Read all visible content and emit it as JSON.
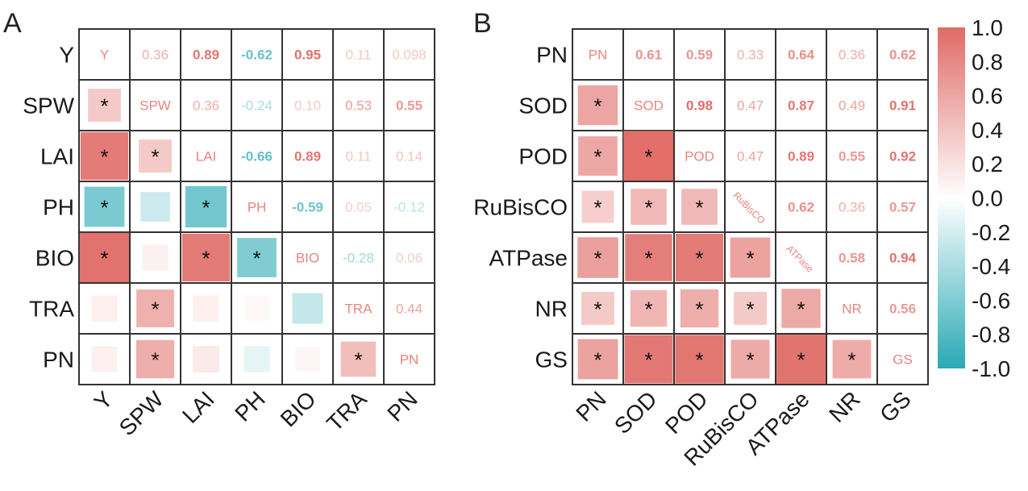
{
  "chart_data": [
    {
      "type": "heatmap",
      "panel_label": "A",
      "variables": [
        "Y",
        "SPW",
        "LAI",
        "PH",
        "BIO",
        "TRA",
        "PN"
      ],
      "diagonal_labels": [
        "Y",
        "SPW",
        "LAI",
        "PH",
        "BIO",
        "TRA",
        "PN"
      ],
      "upper_values": [
        [
          "",
          "0.36",
          "0.89",
          "-0.62",
          "0.95",
          "0.11",
          "0.098"
        ],
        [
          "",
          "",
          "0.36",
          "-0.24",
          "0.10",
          "0.53",
          "0.55"
        ],
        [
          "",
          "",
          "",
          "-0.66",
          "0.89",
          "0.11",
          "0.14"
        ],
        [
          "",
          "",
          "",
          "",
          "-0.59",
          "0.05",
          "-0.12"
        ],
        [
          "",
          "",
          "",
          "",
          "",
          "-0.28",
          "0.06"
        ],
        [
          "",
          "",
          "",
          "",
          "",
          "",
          "0.44"
        ],
        [
          "",
          "",
          "",
          "",
          "",
          "",
          ""
        ]
      ],
      "matrix": [
        [
          1,
          0.36,
          0.89,
          -0.62,
          0.95,
          0.11,
          0.098
        ],
        [
          0.36,
          1,
          0.36,
          -0.24,
          0.1,
          0.53,
          0.55
        ],
        [
          0.89,
          0.36,
          1,
          -0.66,
          0.89,
          0.11,
          0.14
        ],
        [
          -0.62,
          -0.24,
          -0.66,
          1,
          -0.59,
          0.05,
          -0.12
        ],
        [
          0.95,
          0.1,
          0.89,
          -0.59,
          1,
          -0.28,
          0.06
        ],
        [
          0.11,
          0.53,
          0.11,
          0.05,
          -0.28,
          1,
          0.44
        ],
        [
          0.098,
          0.55,
          0.14,
          -0.12,
          0.06,
          0.44,
          1
        ]
      ],
      "significant": [
        [
          1,
          0
        ],
        [
          2,
          0
        ],
        [
          2,
          1
        ],
        [
          3,
          0
        ],
        [
          3,
          2
        ],
        [
          4,
          0
        ],
        [
          4,
          2
        ],
        [
          4,
          3
        ],
        [
          5,
          1
        ],
        [
          6,
          1
        ],
        [
          6,
          5
        ]
      ]
    },
    {
      "type": "heatmap",
      "panel_label": "B",
      "variables": [
        "PN",
        "SOD",
        "POD",
        "RuBisCO",
        "ATPase",
        "NR",
        "GS"
      ],
      "diagonal_labels": [
        "PN",
        "SOD",
        "POD",
        "RuBisCO",
        "ATPase",
        "NR",
        "GS"
      ],
      "upper_values": [
        [
          "",
          "0.61",
          "0.59",
          "0.33",
          "0.64",
          "0.36",
          "0.62"
        ],
        [
          "",
          "",
          "0.98",
          "0.47",
          "0.87",
          "0.49",
          "0.91"
        ],
        [
          "",
          "",
          "",
          "0.47",
          "0.89",
          "0.55",
          "0.92"
        ],
        [
          "",
          "",
          "",
          "",
          "0.62",
          "0.36",
          "0.57"
        ],
        [
          "",
          "",
          "",
          "",
          "",
          "0.58",
          "0.94"
        ],
        [
          "",
          "",
          "",
          "",
          "",
          "",
          "0.56"
        ],
        [
          "",
          "",
          "",
          "",
          "",
          "",
          ""
        ]
      ],
      "matrix": [
        [
          1,
          0.61,
          0.59,
          0.33,
          0.64,
          0.36,
          0.62
        ],
        [
          0.61,
          1,
          0.98,
          0.47,
          0.87,
          0.49,
          0.91
        ],
        [
          0.59,
          0.98,
          1,
          0.47,
          0.89,
          0.55,
          0.92
        ],
        [
          0.33,
          0.47,
          0.47,
          1,
          0.62,
          0.36,
          0.57
        ],
        [
          0.64,
          0.87,
          0.89,
          0.62,
          1,
          0.58,
          0.94
        ],
        [
          0.36,
          0.49,
          0.55,
          0.36,
          0.58,
          1,
          0.56
        ],
        [
          0.62,
          0.91,
          0.92,
          0.57,
          0.94,
          0.56,
          1
        ]
      ],
      "significant": [
        [
          1,
          0
        ],
        [
          2,
          0
        ],
        [
          2,
          1
        ],
        [
          3,
          0
        ],
        [
          3,
          1
        ],
        [
          3,
          2
        ],
        [
          4,
          0
        ],
        [
          4,
          1
        ],
        [
          4,
          2
        ],
        [
          4,
          3
        ],
        [
          5,
          0
        ],
        [
          5,
          1
        ],
        [
          5,
          2
        ],
        [
          5,
          3
        ],
        [
          5,
          4
        ],
        [
          6,
          0
        ],
        [
          6,
          1
        ],
        [
          6,
          2
        ],
        [
          6,
          3
        ],
        [
          6,
          4
        ],
        [
          6,
          5
        ]
      ]
    }
  ],
  "colorbar": {
    "range": [
      -1.0,
      1.0
    ],
    "ticks": [
      "1.0",
      "0.8",
      "0.6",
      "0.4",
      "0.2",
      "0.0",
      "-0.2",
      "-0.4",
      "-0.6",
      "-0.8",
      "-1.0"
    ],
    "colors": {
      "positive": "#e06b66",
      "neutral": "#ffffff",
      "negative": "#2aa9b5"
    }
  },
  "significance_marker": "*"
}
